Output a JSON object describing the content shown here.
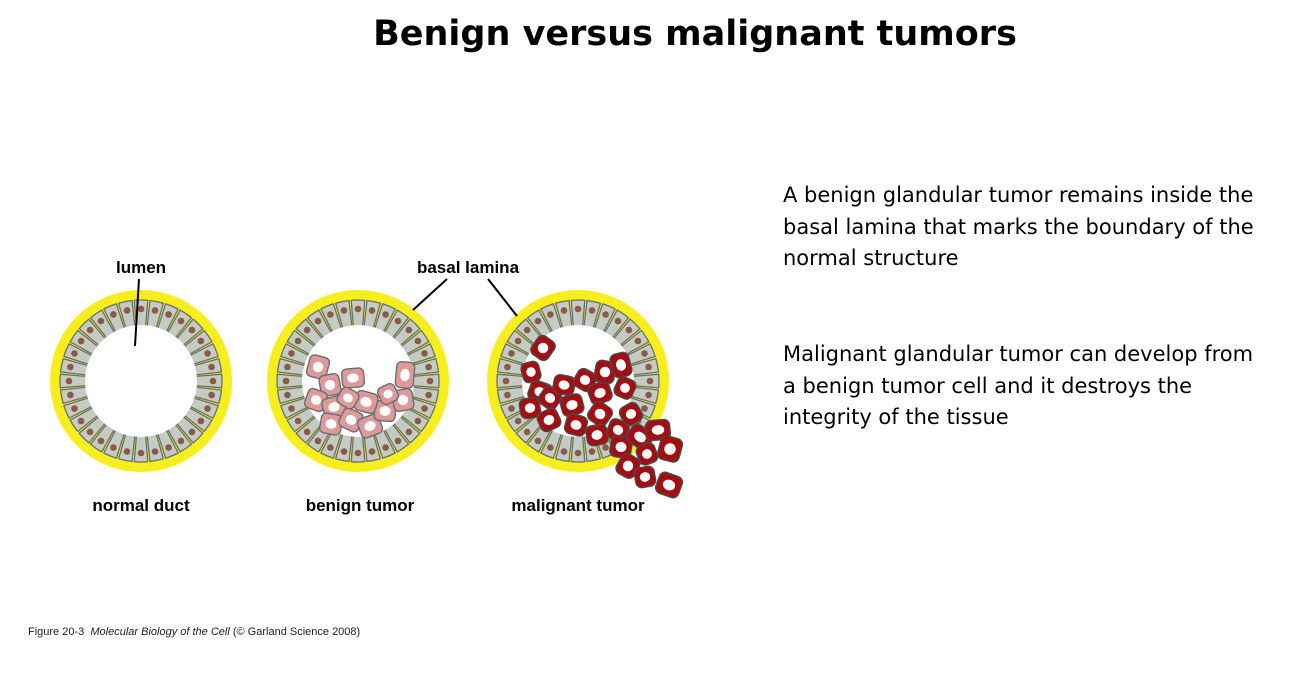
{
  "title": "Benign versus malignant tumors",
  "diagram": {
    "labels": {
      "lumen": "lumen",
      "basal_lamina": "basal lamina",
      "normal_duct": "normal duct",
      "benign_tumor": "benign tumor",
      "malignant_tumor": "malignant tumor"
    },
    "colors": {
      "basal_lamina": "#f7ee1e",
      "epithelial_cell": "#c4cbc4",
      "cell_outline": "#6a706a",
      "nucleus": "#8a5a45",
      "benign_cell": "#de9a9a",
      "malignant_cell": "#a40d12"
    }
  },
  "text": {
    "benign_paragraph": "A benign glandular tumor remains inside the basal lamina that marks the boundary of the normal structure",
    "malignant_paragraph": "Malignant glandular tumor can develop from a benign tumor cell and it destroys the integrity of the tissue"
  },
  "citation": {
    "figure": "Figure 20-3",
    "book": "Molecular Biology of the Cell",
    "publisher": "(© Garland Science 2008)"
  }
}
